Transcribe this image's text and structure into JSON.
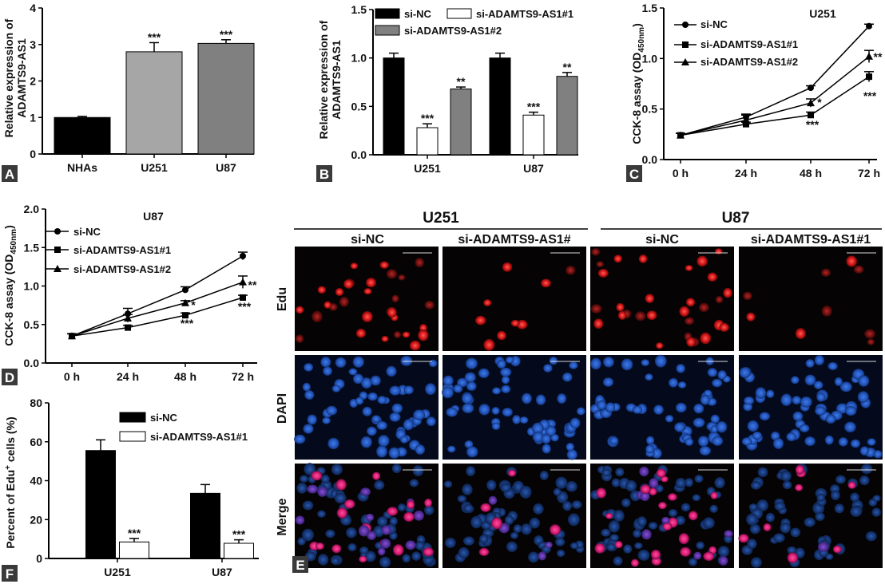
{
  "panel_labels": {
    "a": "A",
    "b": "B",
    "c": "C",
    "d": "D",
    "e": "E",
    "f": "F"
  },
  "chart_data": [
    {
      "panel": "A",
      "type": "bar",
      "ylabel_line1": "Relative expression of",
      "ylabel_line2": "ADAMTS9-AS1",
      "ylim": [
        0,
        4
      ],
      "yticks": [
        0,
        1,
        2,
        3,
        4
      ],
      "categories": [
        "NHAs",
        "U251",
        "U87"
      ],
      "values": [
        1.0,
        2.8,
        3.03
      ],
      "errors": [
        0.03,
        0.25,
        0.1
      ],
      "colors": [
        "#000000",
        "#a6a6a6",
        "#808080"
      ],
      "annotations": [
        "",
        "***",
        "***"
      ]
    },
    {
      "panel": "B",
      "type": "bar",
      "ylabel_line1": "Relative expression of",
      "ylabel_line2": "ADAMTS9-AS1",
      "ylim": [
        0,
        1.5
      ],
      "yticks": [
        "0.0",
        "0.5",
        "1.0",
        "1.5"
      ],
      "categories": [
        "U251",
        "U87"
      ],
      "series": [
        {
          "name": "si-NC",
          "color": "#000000",
          "values": [
            1.0,
            1.0
          ],
          "errors": [
            0.05,
            0.05
          ],
          "annotations": [
            "",
            ""
          ]
        },
        {
          "name": "si-ADAMTS9-AS1#1",
          "color": "#ffffff",
          "values": [
            0.28,
            0.41
          ],
          "errors": [
            0.04,
            0.03
          ],
          "annotations": [
            "***",
            "***"
          ]
        },
        {
          "name": "si-ADAMTS9-AS1#2",
          "color": "#808080",
          "values": [
            0.68,
            0.81
          ],
          "errors": [
            0.02,
            0.04
          ],
          "annotations": [
            "**",
            "**"
          ]
        }
      ]
    },
    {
      "panel": "C",
      "type": "line",
      "title": "U251",
      "ylabel_main": "CCK-8 assay (OD",
      "ylabel_sub": "450nm",
      "ylabel_close": ")",
      "ylim": [
        0,
        1.5
      ],
      "yticks": [
        "0.0",
        "0.5",
        "1.0",
        "1.5"
      ],
      "x": [
        "0 h",
        "24 h",
        "48 h",
        "72 h"
      ],
      "series": [
        {
          "name": "si-NC",
          "marker": "circle",
          "values": [
            0.24,
            0.42,
            0.71,
            1.32
          ],
          "errors": [
            0.02,
            0.03,
            0.02,
            0.02
          ]
        },
        {
          "name": "si-ADAMTS9-AS1#1",
          "marker": "square",
          "values": [
            0.24,
            0.35,
            0.44,
            0.82
          ],
          "errors": [
            0.02,
            0.02,
            0.03,
            0.05
          ]
        },
        {
          "name": "si-ADAMTS9-AS1#2",
          "marker": "triangle",
          "values": [
            0.24,
            0.39,
            0.56,
            1.02
          ],
          "errors": [
            0.02,
            0.05,
            0.04,
            0.06
          ]
        }
      ],
      "annotations": [
        "*",
        "***",
        "**",
        "***"
      ]
    },
    {
      "panel": "D",
      "type": "line",
      "title": "U87",
      "ylabel_main": "CCK-8 assay (OD",
      "ylabel_sub": "450nm",
      "ylabel_close": ")",
      "ylim": [
        0,
        2.0
      ],
      "yticks": [
        "0.0",
        "0.5",
        "1.0",
        "1.5",
        "2.0"
      ],
      "x": [
        "0 h",
        "24 h",
        "48 h",
        "72 h"
      ],
      "series": [
        {
          "name": "si-NC",
          "marker": "circle",
          "values": [
            0.35,
            0.64,
            0.95,
            1.39
          ],
          "errors": [
            0.03,
            0.07,
            0.04,
            0.05
          ]
        },
        {
          "name": "si-ADAMTS9-AS1#1",
          "marker": "square",
          "values": [
            0.35,
            0.46,
            0.62,
            0.85
          ],
          "errors": [
            0.03,
            0.03,
            0.03,
            0.03
          ]
        },
        {
          "name": "si-ADAMTS9-AS1#2",
          "marker": "triangle",
          "values": [
            0.35,
            0.58,
            0.78,
            1.05
          ],
          "errors": [
            0.03,
            0.05,
            0.03,
            0.08
          ]
        }
      ],
      "annotations": [
        "*",
        "***",
        "**",
        "***"
      ]
    },
    {
      "panel": "F",
      "type": "bar",
      "ylabel_main": "Percent of Edu",
      "ylabel_sup": "+",
      "ylabel_rest": " cells (%)",
      "ylim": [
        0,
        80
      ],
      "yticks": [
        0,
        20,
        40,
        60,
        80
      ],
      "categories": [
        "U251",
        "U87"
      ],
      "series": [
        {
          "name": "si-NC",
          "color": "#000000",
          "values": [
            55.5,
            33.5
          ],
          "errors": [
            5.5,
            4.5
          ],
          "annotations": [
            "",
            ""
          ]
        },
        {
          "name": "si-ADAMTS9-AS1#1",
          "color": "#ffffff",
          "values": [
            8.5,
            7.8
          ],
          "errors": [
            1.8,
            1.8
          ],
          "annotations": [
            "***",
            "***"
          ]
        }
      ]
    }
  ],
  "micrographs": {
    "group_headers": [
      "U251",
      "U87"
    ],
    "column_headers": [
      "si-NC",
      "si-ADAMTS9-AS1#",
      "si-NC",
      "si-ADAMTS9-AS1#1"
    ],
    "row_labels": [
      "Edu",
      "DAPI",
      "Merge"
    ]
  }
}
